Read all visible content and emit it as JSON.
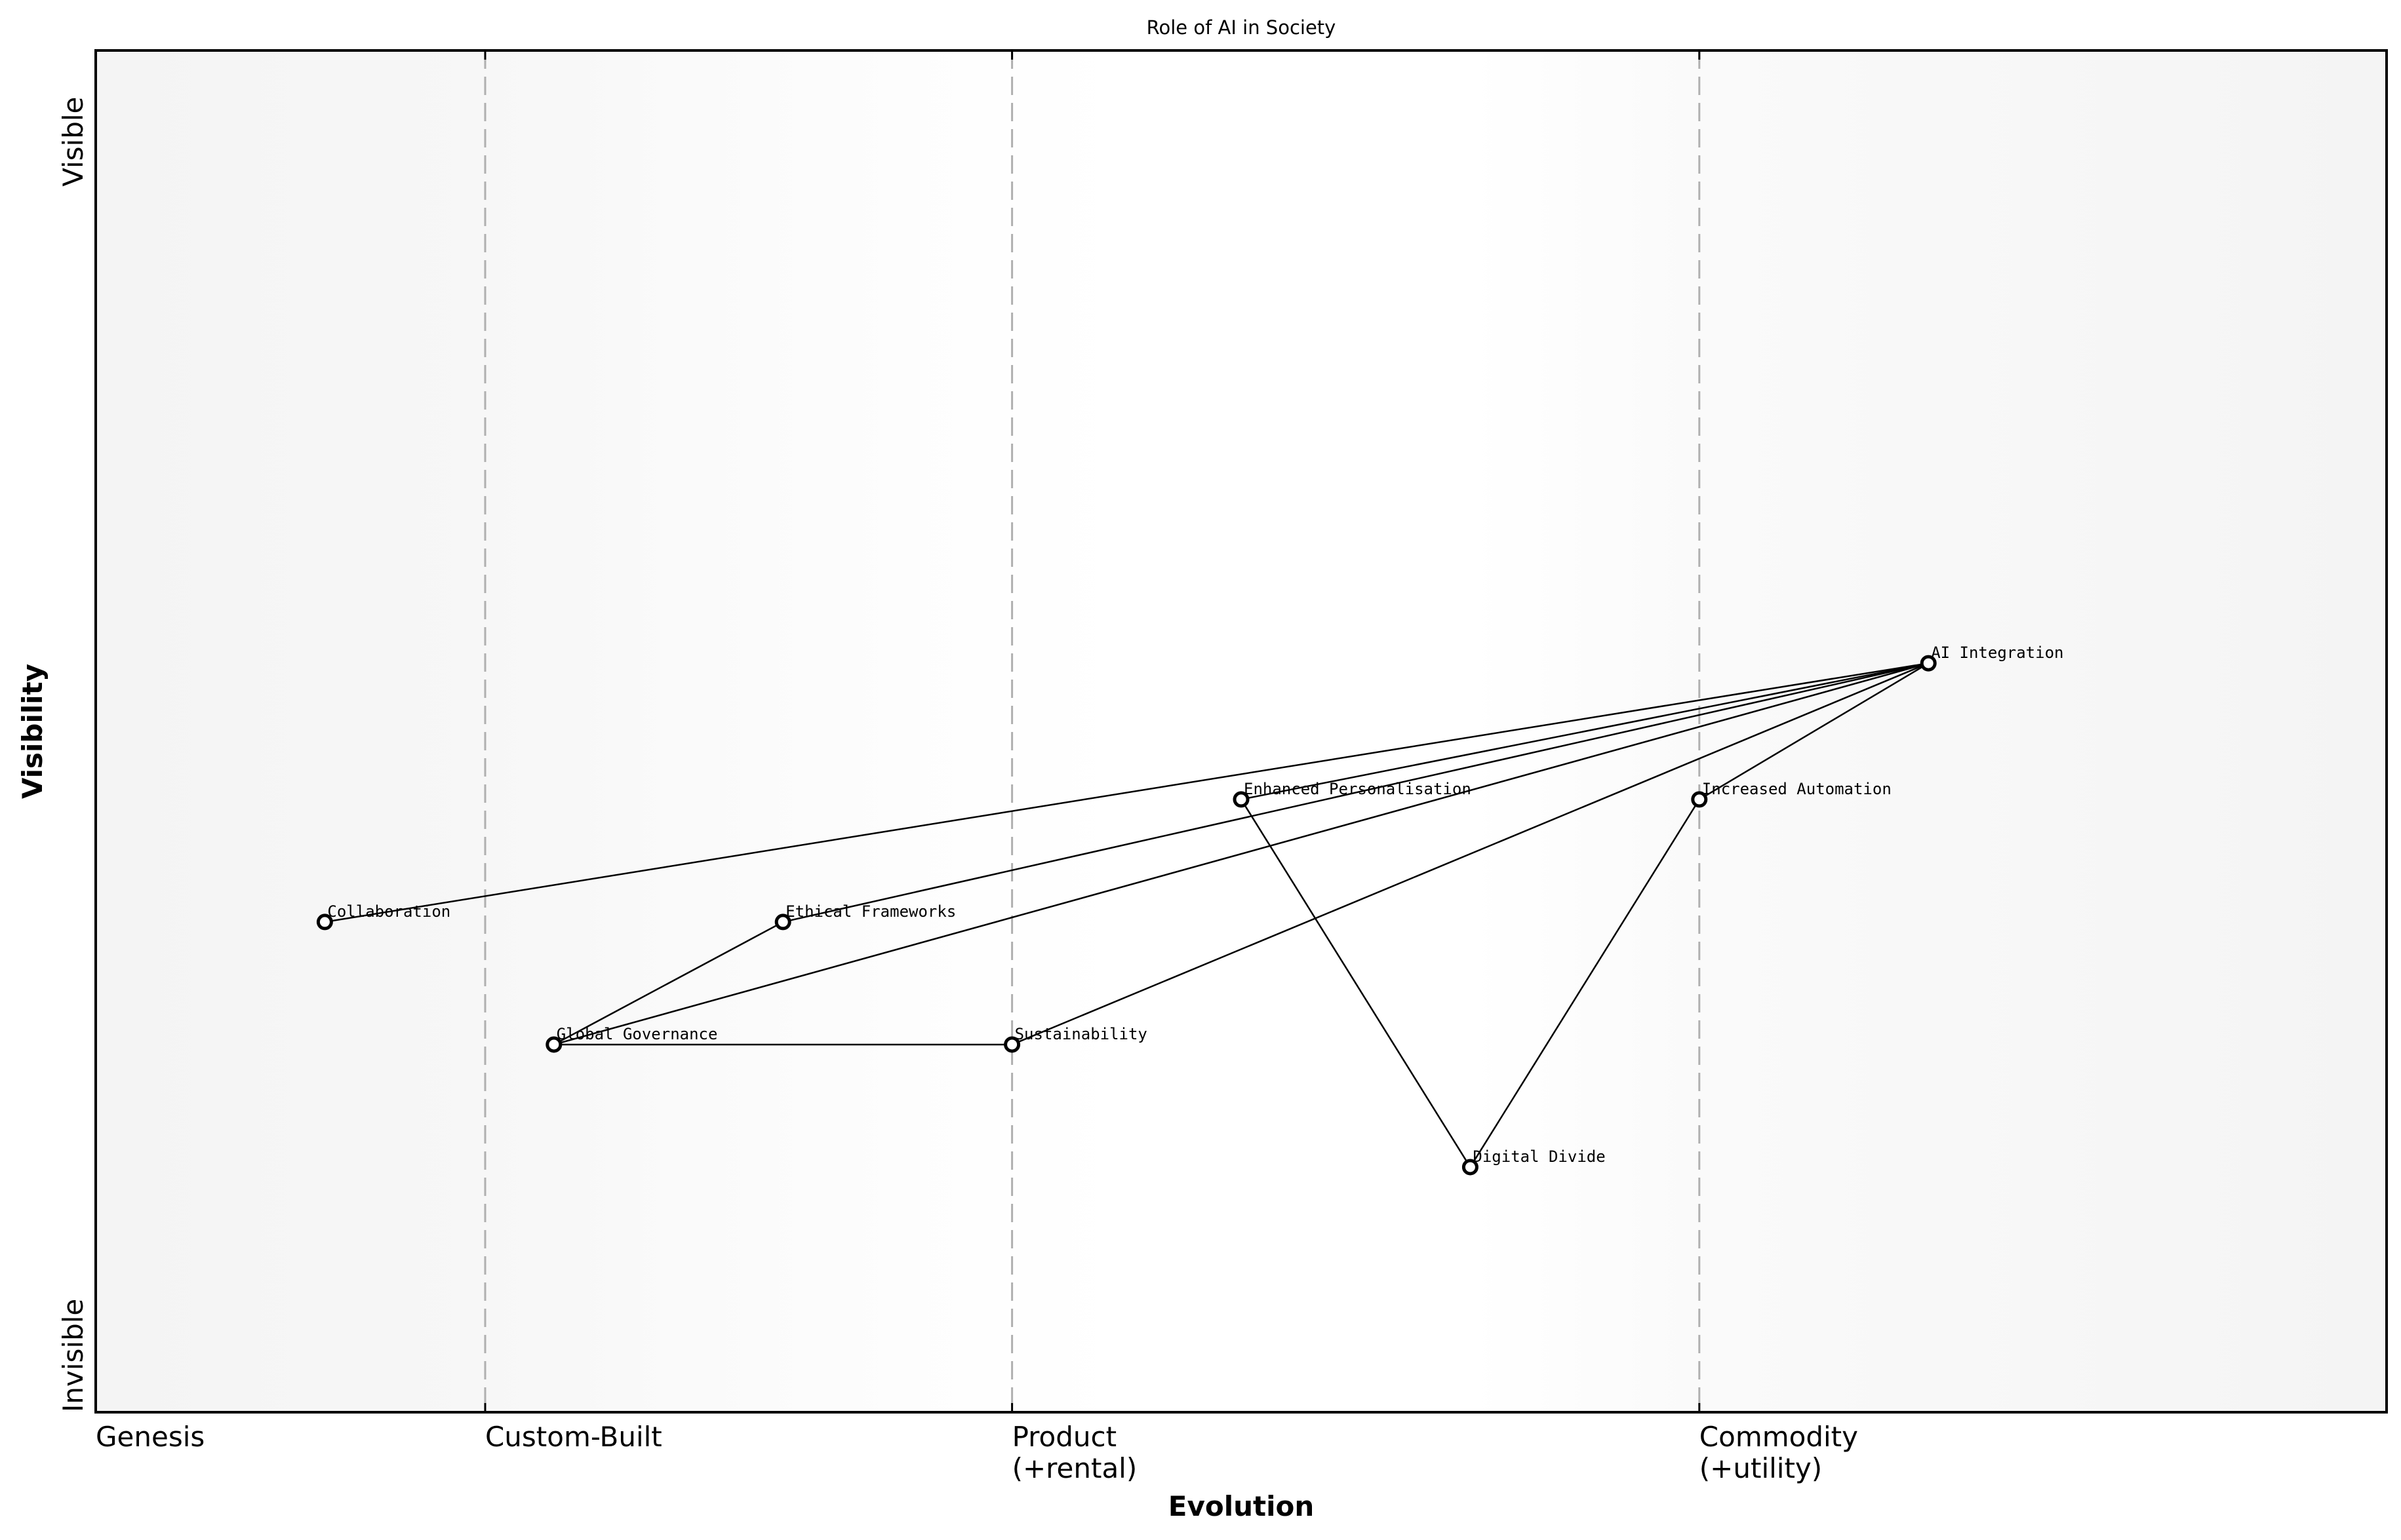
{
  "chart_data": {
    "type": "scatter",
    "subtype": "wardley-map",
    "title": "Role of AI in Society",
    "xlabel": "Evolution",
    "ylabel": "Visibility",
    "xlim": [
      0,
      1
    ],
    "ylim": [
      0,
      1
    ],
    "grid": false,
    "legend": null,
    "x_ticks": [
      {
        "value": 0.0,
        "label": "Genesis"
      },
      {
        "value": 0.17,
        "label": "Custom-Built"
      },
      {
        "value": 0.4,
        "label": "Product\n(+rental)"
      },
      {
        "value": 0.7,
        "label": "Commodity\n(+utility)"
      }
    ],
    "y_ticks": [
      {
        "value": 0.0,
        "label": "Invisible"
      },
      {
        "value": 0.9,
        "label": "Visible"
      }
    ],
    "stage_dividers": [
      0.17,
      0.4,
      0.7
    ],
    "nodes": [
      {
        "name": "AI Integration",
        "x": 0.8,
        "y": 0.55
      },
      {
        "name": "Enhanced Personalisation",
        "x": 0.5,
        "y": 0.45
      },
      {
        "name": "Increased Automation",
        "x": 0.7,
        "y": 0.45
      },
      {
        "name": "Collaboration",
        "x": 0.1,
        "y": 0.36
      },
      {
        "name": "Ethical Frameworks",
        "x": 0.3,
        "y": 0.36
      },
      {
        "name": "Global Governance",
        "x": 0.2,
        "y": 0.27
      },
      {
        "name": "Sustainability",
        "x": 0.4,
        "y": 0.27
      },
      {
        "name": "Digital Divide",
        "x": 0.6,
        "y": 0.18
      }
    ],
    "edges": [
      [
        "Collaboration",
        "AI Integration"
      ],
      [
        "Ethical Frameworks",
        "AI Integration"
      ],
      [
        "Global Governance",
        "AI Integration"
      ],
      [
        "Sustainability",
        "AI Integration"
      ],
      [
        "Enhanced Personalisation",
        "AI Integration"
      ],
      [
        "Increased Automation",
        "AI Integration"
      ],
      [
        "Global Governance",
        "Ethical Frameworks"
      ],
      [
        "Global Governance",
        "Sustainability"
      ],
      [
        "Enhanced Personalisation",
        "Digital Divide"
      ],
      [
        "Increased Automation",
        "Digital Divide"
      ]
    ]
  },
  "colors": {
    "background_edge": "#f5f5f5",
    "background_center": "#ffffff",
    "divider": "#b0b0b0",
    "ink": "#000000"
  }
}
